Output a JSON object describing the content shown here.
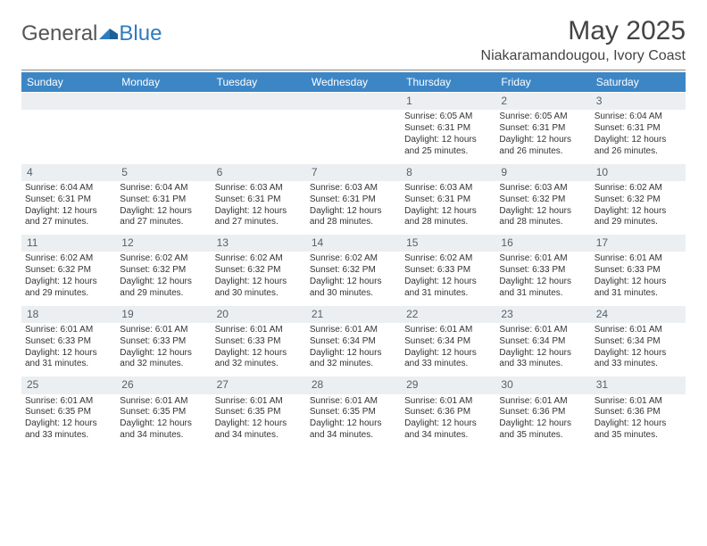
{
  "brand": {
    "word1": "General",
    "word2": "Blue"
  },
  "title": "May 2025",
  "location": "Niakaramandougou, Ivory Coast",
  "colors": {
    "header_bg": "#3d86c6",
    "header_text": "#ffffff",
    "daynum_bg": "#eceff1",
    "daynum_text": "#55606a",
    "body_text": "#333333",
    "rule": "#888888",
    "brand_blue": "#2f7bbf"
  },
  "typography": {
    "title_fontsize": 30,
    "location_fontsize": 16,
    "dow_fontsize": 12,
    "daynum_fontsize": 12,
    "body_fontsize": 10
  },
  "dow": [
    "Sunday",
    "Monday",
    "Tuesday",
    "Wednesday",
    "Thursday",
    "Friday",
    "Saturday"
  ],
  "grid": {
    "cols": 7,
    "rows": 5,
    "first_day_col": 4,
    "days_in_month": 31
  },
  "days": {
    "1": {
      "sunrise": "6:05 AM",
      "sunset": "6:31 PM",
      "daylight": "12 hours and 25 minutes."
    },
    "2": {
      "sunrise": "6:05 AM",
      "sunset": "6:31 PM",
      "daylight": "12 hours and 26 minutes."
    },
    "3": {
      "sunrise": "6:04 AM",
      "sunset": "6:31 PM",
      "daylight": "12 hours and 26 minutes."
    },
    "4": {
      "sunrise": "6:04 AM",
      "sunset": "6:31 PM",
      "daylight": "12 hours and 27 minutes."
    },
    "5": {
      "sunrise": "6:04 AM",
      "sunset": "6:31 PM",
      "daylight": "12 hours and 27 minutes."
    },
    "6": {
      "sunrise": "6:03 AM",
      "sunset": "6:31 PM",
      "daylight": "12 hours and 27 minutes."
    },
    "7": {
      "sunrise": "6:03 AM",
      "sunset": "6:31 PM",
      "daylight": "12 hours and 28 minutes."
    },
    "8": {
      "sunrise": "6:03 AM",
      "sunset": "6:31 PM",
      "daylight": "12 hours and 28 minutes."
    },
    "9": {
      "sunrise": "6:03 AM",
      "sunset": "6:32 PM",
      "daylight": "12 hours and 28 minutes."
    },
    "10": {
      "sunrise": "6:02 AM",
      "sunset": "6:32 PM",
      "daylight": "12 hours and 29 minutes."
    },
    "11": {
      "sunrise": "6:02 AM",
      "sunset": "6:32 PM",
      "daylight": "12 hours and 29 minutes."
    },
    "12": {
      "sunrise": "6:02 AM",
      "sunset": "6:32 PM",
      "daylight": "12 hours and 29 minutes."
    },
    "13": {
      "sunrise": "6:02 AM",
      "sunset": "6:32 PM",
      "daylight": "12 hours and 30 minutes."
    },
    "14": {
      "sunrise": "6:02 AM",
      "sunset": "6:32 PM",
      "daylight": "12 hours and 30 minutes."
    },
    "15": {
      "sunrise": "6:02 AM",
      "sunset": "6:33 PM",
      "daylight": "12 hours and 31 minutes."
    },
    "16": {
      "sunrise": "6:01 AM",
      "sunset": "6:33 PM",
      "daylight": "12 hours and 31 minutes."
    },
    "17": {
      "sunrise": "6:01 AM",
      "sunset": "6:33 PM",
      "daylight": "12 hours and 31 minutes."
    },
    "18": {
      "sunrise": "6:01 AM",
      "sunset": "6:33 PM",
      "daylight": "12 hours and 31 minutes."
    },
    "19": {
      "sunrise": "6:01 AM",
      "sunset": "6:33 PM",
      "daylight": "12 hours and 32 minutes."
    },
    "20": {
      "sunrise": "6:01 AM",
      "sunset": "6:33 PM",
      "daylight": "12 hours and 32 minutes."
    },
    "21": {
      "sunrise": "6:01 AM",
      "sunset": "6:34 PM",
      "daylight": "12 hours and 32 minutes."
    },
    "22": {
      "sunrise": "6:01 AM",
      "sunset": "6:34 PM",
      "daylight": "12 hours and 33 minutes."
    },
    "23": {
      "sunrise": "6:01 AM",
      "sunset": "6:34 PM",
      "daylight": "12 hours and 33 minutes."
    },
    "24": {
      "sunrise": "6:01 AM",
      "sunset": "6:34 PM",
      "daylight": "12 hours and 33 minutes."
    },
    "25": {
      "sunrise": "6:01 AM",
      "sunset": "6:35 PM",
      "daylight": "12 hours and 33 minutes."
    },
    "26": {
      "sunrise": "6:01 AM",
      "sunset": "6:35 PM",
      "daylight": "12 hours and 34 minutes."
    },
    "27": {
      "sunrise": "6:01 AM",
      "sunset": "6:35 PM",
      "daylight": "12 hours and 34 minutes."
    },
    "28": {
      "sunrise": "6:01 AM",
      "sunset": "6:35 PM",
      "daylight": "12 hours and 34 minutes."
    },
    "29": {
      "sunrise": "6:01 AM",
      "sunset": "6:36 PM",
      "daylight": "12 hours and 34 minutes."
    },
    "30": {
      "sunrise": "6:01 AM",
      "sunset": "6:36 PM",
      "daylight": "12 hours and 35 minutes."
    },
    "31": {
      "sunrise": "6:01 AM",
      "sunset": "6:36 PM",
      "daylight": "12 hours and 35 minutes."
    }
  },
  "labels": {
    "sunrise": "Sunrise:",
    "sunset": "Sunset:",
    "daylight": "Daylight:"
  }
}
